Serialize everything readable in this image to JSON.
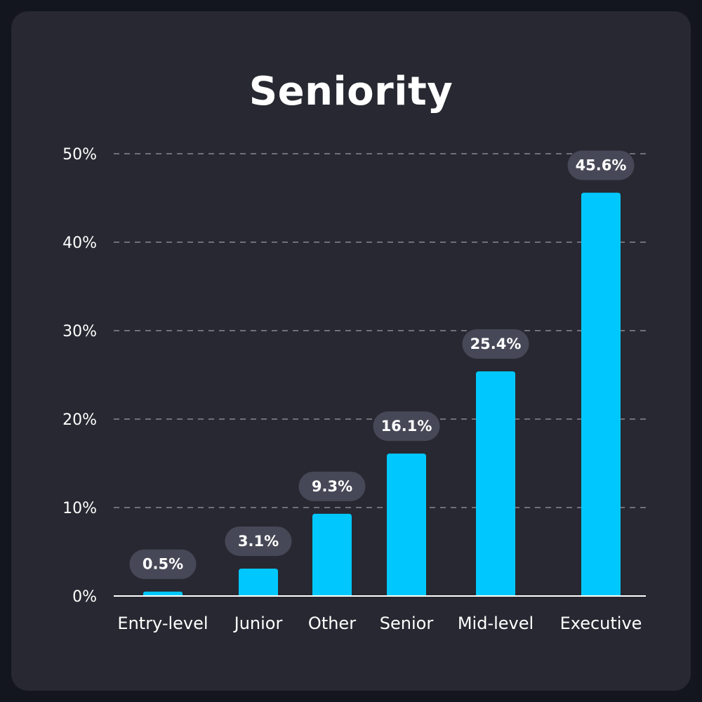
{
  "chart_data": {
    "type": "bar",
    "title": "Seniority",
    "categories": [
      "Entry-level",
      "Junior",
      "Other",
      "Senior",
      "Mid-level",
      "Executive"
    ],
    "values": [
      0.5,
      3.1,
      9.3,
      16.1,
      25.4,
      45.6
    ],
    "data_labels": [
      "0.5%",
      "3.1%",
      "9.3%",
      "16.1%",
      "25.4%",
      "45.6%"
    ],
    "y_ticks": [
      "0%",
      "10%",
      "20%",
      "30%",
      "40%",
      "50%"
    ],
    "ylim": [
      0,
      50
    ],
    "grid": true,
    "legend": "none",
    "xlabel": "",
    "ylabel": ""
  },
  "colors": {
    "background": "#13151f",
    "card": "#272831",
    "bar": "#00c8ff",
    "label_pill": "#474857",
    "grid": "#9a9ba3",
    "text": "#ffffff"
  }
}
